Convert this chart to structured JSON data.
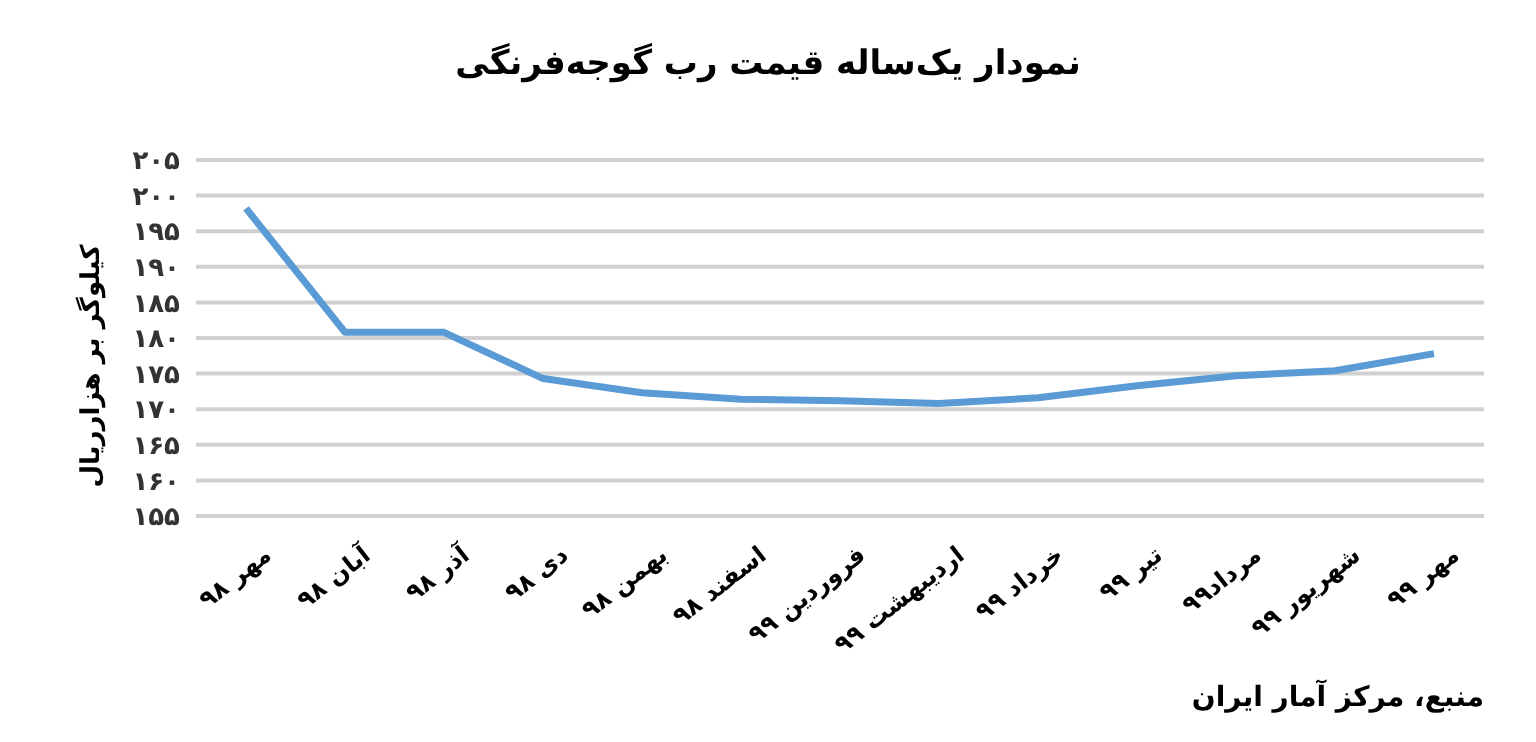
{
  "chart_data": {
    "type": "line",
    "title": "نمودار یک‌ساله قیمت رب گوجه‌فرنگی",
    "ylabel": "کیلوگر بر هزارریال",
    "categories": [
      "مهر ۹۸",
      "آبان ۹۸",
      "آذر ۹۸",
      "دی ۹۸",
      "بهمن ۹۸",
      "اسفند ۹۸",
      "فروردین ۹۹",
      "اردیبهشت ۹۹",
      "خرداد ۹۹",
      "تیر ۹۹",
      "مرداد۹۹",
      "شهریور ۹۹",
      "مهر ۹۹"
    ],
    "series": [
      {
        "color": "#5b9bd5",
        "values": [
          198.2,
          180.8,
          180.8,
          174.3,
          172.3,
          171.4,
          171.2,
          170.8,
          171.6,
          173.3,
          174.7,
          175.4,
          177.8
        ]
      }
    ],
    "ylim": [
      155,
      205
    ],
    "yticks": [
      {
        "value": 155,
        "label": "۱۵۵"
      },
      {
        "value": 160,
        "label": "۱۶۰"
      },
      {
        "value": 165,
        "label": "۱۶۵"
      },
      {
        "value": 170,
        "label": "۱۷۰"
      },
      {
        "value": 175,
        "label": "۱۷۵"
      },
      {
        "value": 180,
        "label": "۱۸۰"
      },
      {
        "value": 185,
        "label": "۱۸۵"
      },
      {
        "value": 190,
        "label": "۱۹۰"
      },
      {
        "value": 195,
        "label": "۱۹۵"
      },
      {
        "value": 200,
        "label": "۲۰۰"
      },
      {
        "value": 205,
        "label": "۲۰۵"
      }
    ],
    "grid": "y",
    "marker": "none",
    "line_style": "solid",
    "annotations": [
      "منبع، مرکز آمار ایران"
    ]
  }
}
